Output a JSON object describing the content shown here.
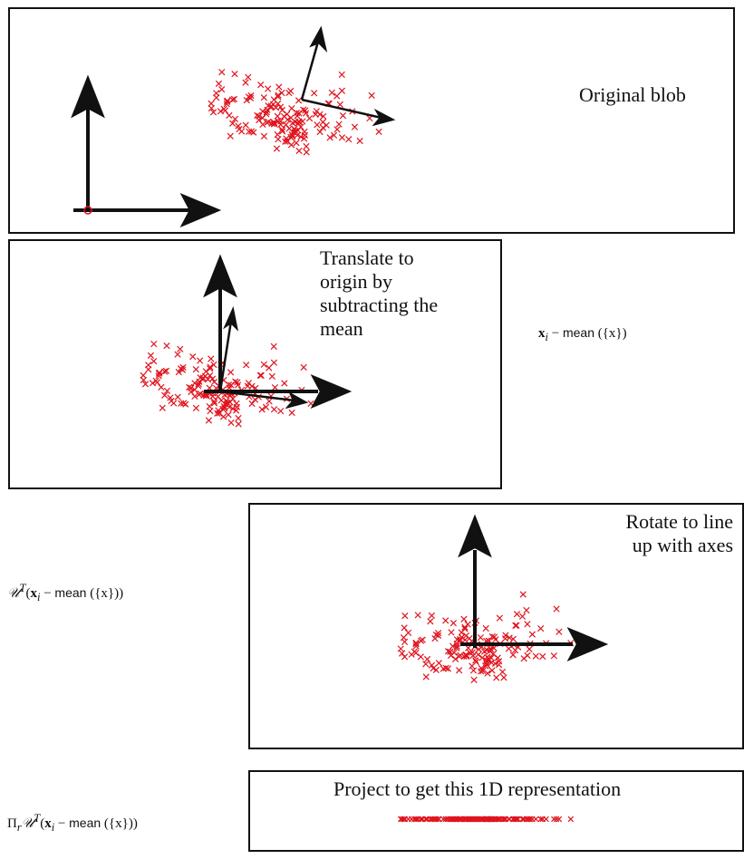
{
  "panels": [
    {
      "id": "original",
      "label": "Original blob"
    },
    {
      "id": "translate",
      "label_lines": [
        "Translate to",
        "origin by",
        "subtracting the",
        "mean"
      ]
    },
    {
      "id": "rotate",
      "label_lines": [
        "Rotate to line",
        "up with axes"
      ]
    },
    {
      "id": "project",
      "label": "Project to get this 1D representation"
    }
  ],
  "formulas": {
    "translate": {
      "vec": "x",
      "sub": "i",
      "op": " − ",
      "fn": "mean",
      "arg": "({x})"
    },
    "rotate": {
      "U": "𝒰",
      "sup": "T",
      "open": "(",
      "vec": "x",
      "sub": "i",
      "op": " − ",
      "fn": "mean",
      "arg": "({x})",
      "close": ")"
    },
    "project": {
      "Pi": "Π",
      "pisub": "r",
      "U": "𝒰",
      "sup": "T",
      "open": "(",
      "vec": "x",
      "sub": "i",
      "op": " − ",
      "fn": "mean",
      "arg": "({x})",
      "close": ")"
    }
  },
  "colors": {
    "points": "#e0141e",
    "axes": "#111111"
  },
  "icons": {
    "point_marker": "cross-marker",
    "axis": "arrow-axis"
  }
}
